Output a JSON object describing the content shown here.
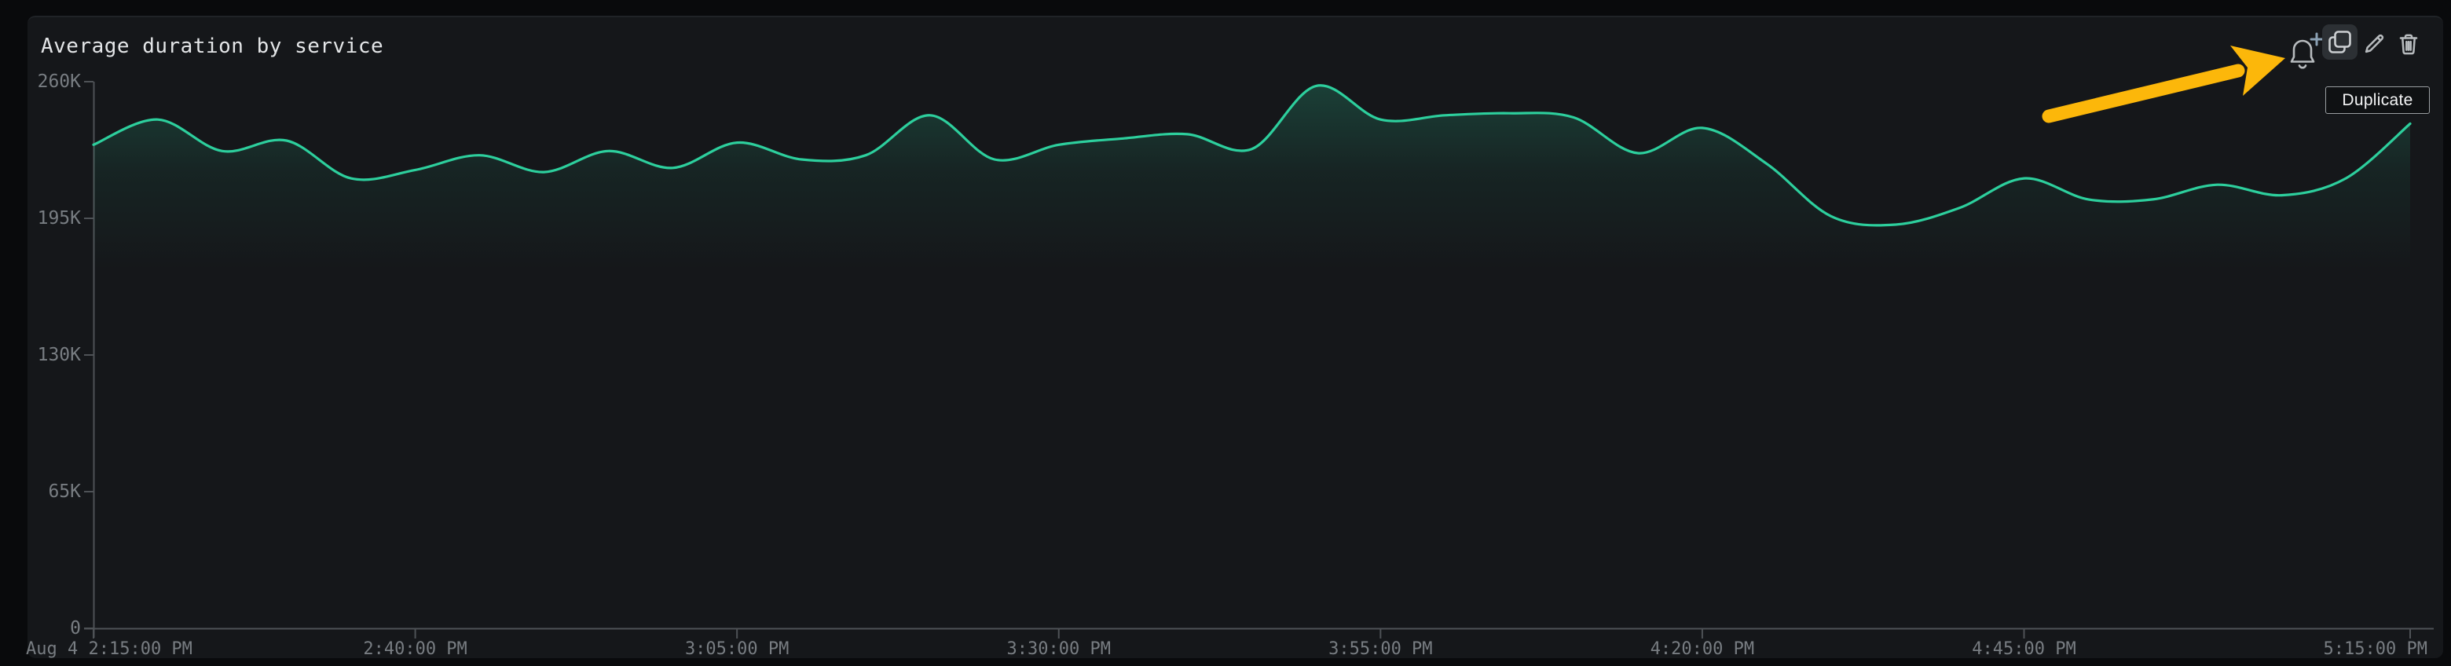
{
  "widget": {
    "title": "Average duration by service",
    "toolbar": {
      "buttons": [
        {
          "id": "create-monitor",
          "icon": "bell-plus-icon"
        },
        {
          "id": "duplicate",
          "icon": "copy-icon",
          "hovered": true
        },
        {
          "id": "edit",
          "icon": "pencil-icon"
        },
        {
          "id": "delete",
          "icon": "trash-icon"
        }
      ],
      "tooltip": "Duplicate"
    },
    "annotation": {
      "shape": "arrow",
      "points_to": "duplicate-button"
    }
  },
  "colors": {
    "page_bg": "#090a0c",
    "panel_bg": "#15171a",
    "title": "#e4e6e8",
    "axis": "#4e5256",
    "tick_label": "#787d82",
    "line": "#2dcf9d",
    "area_fill": "#2dcf9d",
    "icon": "#b7bbbe",
    "icon_bright": "#cdd0d3",
    "icon_plus": "#8aa0b3",
    "icon_button_bg": "#2c3034",
    "tooltip_bg": "#0f1113",
    "tooltip_border": "#9a9ea1",
    "tooltip_text": "#f4f5f6",
    "arrow": "#fcb70a"
  },
  "chart_data": {
    "type": "line",
    "title": "Average duration by service",
    "xlabel": "",
    "ylabel": "",
    "grid": "off",
    "legend": "none",
    "ylim": [
      0,
      260000
    ],
    "x_range_minutes": [
      0,
      180
    ],
    "y_ticks": [
      {
        "label": "260K",
        "value": 260000
      },
      {
        "label": "195K",
        "value": 195000
      },
      {
        "label": "130K",
        "value": 130000
      },
      {
        "label": "65K",
        "value": 65000
      },
      {
        "label": "0",
        "value": 0
      }
    ],
    "x_ticks": [
      {
        "label": "Aug 4 2:15:00 PM",
        "minute": 0,
        "align": "start"
      },
      {
        "label": "2:40:00 PM",
        "minute": 25,
        "align": "middle"
      },
      {
        "label": "3:05:00 PM",
        "minute": 50,
        "align": "middle"
      },
      {
        "label": "3:30:00 PM",
        "minute": 75,
        "align": "middle"
      },
      {
        "label": "3:55:00 PM",
        "minute": 100,
        "align": "middle"
      },
      {
        "label": "4:20:00 PM",
        "minute": 125,
        "align": "middle"
      },
      {
        "label": "4:45:00 PM",
        "minute": 150,
        "align": "middle"
      },
      {
        "label": "5:15:00 PM",
        "minute": 180,
        "align": "end"
      }
    ],
    "x_minutes": [
      0,
      5,
      10,
      15,
      20,
      25,
      30,
      35,
      40,
      45,
      50,
      55,
      60,
      65,
      70,
      75,
      80,
      85,
      90,
      95,
      100,
      105,
      110,
      115,
      120,
      125,
      130,
      135,
      140,
      145,
      150,
      155,
      160,
      165,
      170,
      175,
      180
    ],
    "series": [
      {
        "name": "Average duration",
        "values": [
          230000,
          242000,
          227000,
          232000,
          214000,
          218000,
          225000,
          217000,
          227000,
          219000,
          231000,
          223000,
          225000,
          244000,
          223000,
          230000,
          233000,
          235000,
          228000,
          258000,
          242000,
          244000,
          245000,
          243000,
          226000,
          238000,
          221000,
          196000,
          192000,
          200000,
          214000,
          204000,
          204000,
          211000,
          206000,
          214000,
          240000
        ]
      }
    ]
  }
}
